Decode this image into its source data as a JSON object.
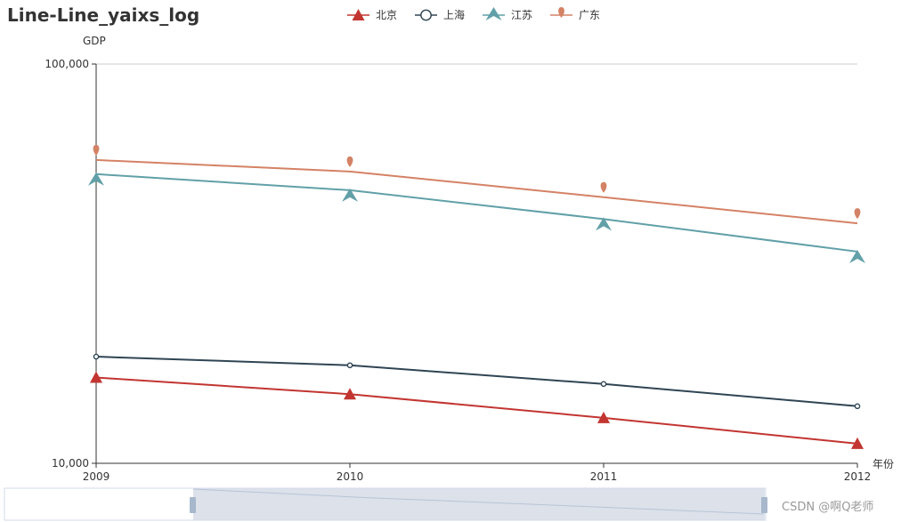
{
  "chart_data": {
    "type": "line",
    "title": "Line-Line_yaixs_log",
    "xlabel": "年份",
    "ylabel": "GDP",
    "y_scale": "log",
    "ylim": [
      10000,
      100000
    ],
    "yticks": [
      "10,000",
      "100,000"
    ],
    "categories": [
      "2009",
      "2010",
      "2011",
      "2012"
    ],
    "series": [
      {
        "name": "北京",
        "color": "#c23531",
        "symbol": "triangle",
        "values": [
          16400,
          14900,
          13000,
          11200
        ]
      },
      {
        "name": "上海",
        "color": "#2f4554",
        "symbol": "emptyCircle",
        "values": [
          18500,
          17600,
          15800,
          13900
        ]
      },
      {
        "name": "江苏",
        "color": "#61a0a8",
        "symbol": "arrow",
        "values": [
          53000,
          48300,
          40900,
          33900
        ]
      },
      {
        "name": "广东",
        "color": "#d48265",
        "symbol": "pin",
        "values": [
          57500,
          53800,
          46400,
          39900
        ]
      }
    ],
    "grid": true,
    "legend_position": "top-center"
  },
  "watermark": "CSDN @啊Q老师"
}
